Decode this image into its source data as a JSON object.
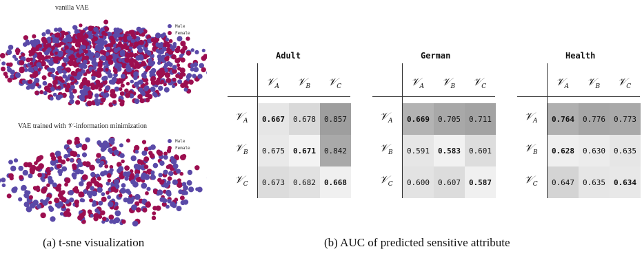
{
  "left": {
    "plot1_title": "vanilla VAE",
    "plot2_title": "VAE trained with 𝒱-information minimization",
    "legend": [
      {
        "label": "Male",
        "color": "#5a4aa8"
      },
      {
        "label": "Female",
        "color": "#9c0e4f"
      }
    ],
    "caption": "(a) t-sne visualization"
  },
  "right": {
    "caption": "(b) AUC of predicted sensitive attribute",
    "row_labels": [
      {
        "main": "𝒱",
        "sub": "A"
      },
      {
        "main": "𝒱",
        "sub": "B"
      },
      {
        "main": "𝒱",
        "sub": "C"
      }
    ],
    "col_labels": [
      {
        "main": "𝒱",
        "sub": "A"
      },
      {
        "main": "𝒱",
        "sub": "B"
      },
      {
        "main": "𝒱",
        "sub": "C"
      }
    ],
    "tables": [
      {
        "title": "Adult",
        "cells": [
          [
            "0.667",
            "0.678",
            "0.857"
          ],
          [
            "0.675",
            "0.671",
            "0.842"
          ],
          [
            "0.673",
            "0.682",
            "0.668"
          ]
        ],
        "bold": [
          [
            true,
            false,
            false
          ],
          [
            false,
            true,
            false
          ],
          [
            false,
            false,
            true
          ]
        ],
        "shades": [
          [
            "#e6e6e6",
            "#d9d9d9",
            "#9e9e9e"
          ],
          [
            "#e9e9e9",
            "#f3f3f3",
            "#a9a9a9"
          ],
          [
            "#dcdcdc",
            "#e1e1e1",
            "#f0f0f0"
          ]
        ]
      },
      {
        "title": "German",
        "cells": [
          [
            "0.669",
            "0.705",
            "0.711"
          ],
          [
            "0.591",
            "0.583",
            "0.601"
          ],
          [
            "0.600",
            "0.607",
            "0.587"
          ]
        ],
        "bold": [
          [
            true,
            false,
            false
          ],
          [
            false,
            true,
            false
          ],
          [
            false,
            false,
            true
          ]
        ],
        "shades": [
          [
            "#b3b3b3",
            "#a8a8a8",
            "#a3a3a3"
          ],
          [
            "#e6e6e6",
            "#f1f1f1",
            "#dddddd"
          ],
          [
            "#e3e3e3",
            "#dcdcdc",
            "#f0f0f0"
          ]
        ]
      },
      {
        "title": "Health",
        "cells": [
          [
            "0.764",
            "0.776",
            "0.773"
          ],
          [
            "0.628",
            "0.630",
            "0.635"
          ],
          [
            "0.647",
            "0.635",
            "0.634"
          ]
        ],
        "bold": [
          [
            true,
            false,
            false
          ],
          [
            true,
            false,
            false
          ],
          [
            false,
            false,
            true
          ]
        ],
        "shades": [
          [
            "#b0b0b0",
            "#a6a6a6",
            "#a9a9a9"
          ],
          [
            "#efefef",
            "#ececec",
            "#e6e6e6"
          ],
          [
            "#d4d4d4",
            "#e6e6e6",
            "#e8e8e8"
          ]
        ]
      }
    ]
  }
}
